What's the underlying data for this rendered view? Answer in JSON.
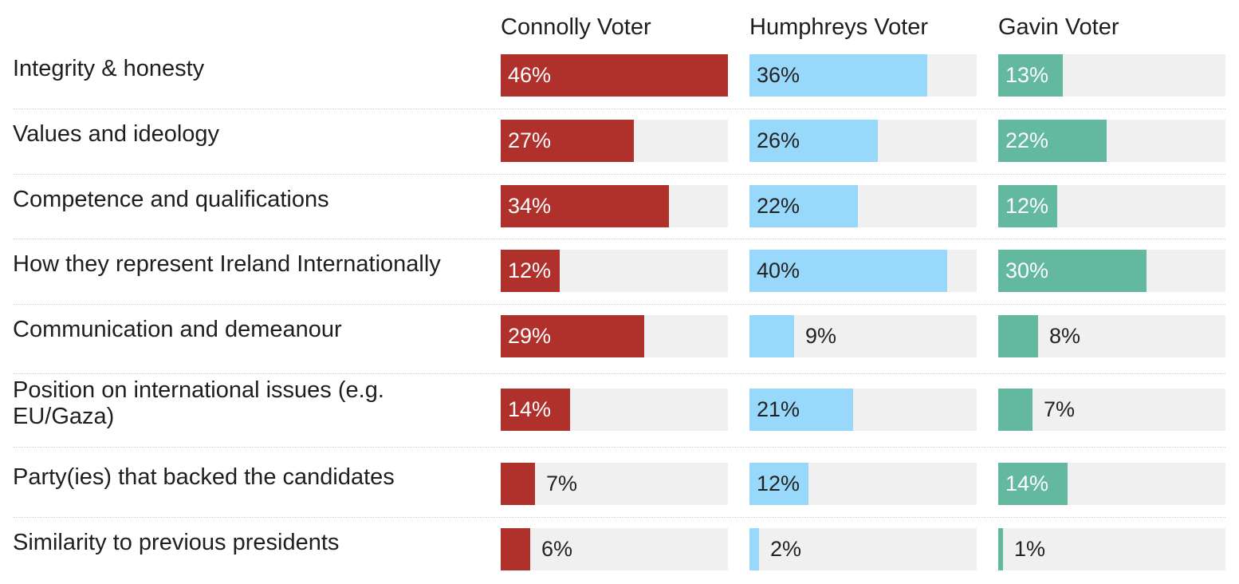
{
  "chart_data": {
    "type": "bar",
    "orientation": "horizontal",
    "layout": "small-multiples",
    "categories": [
      "Integrity & honesty",
      "Values and ideology",
      "Competence and qualifications",
      "How they represent Ireland Internationally",
      "Communication and demeanour",
      "Position on international issues (e.g. EU/Gaza)",
      "Party(ies) that backed the candidates",
      "Similarity to previous presidents"
    ],
    "xlim": [
      0,
      46
    ],
    "series": [
      {
        "name": "Connolly Voter",
        "color": "#b0302b",
        "values": [
          46,
          27,
          34,
          12,
          29,
          14,
          7,
          6
        ]
      },
      {
        "name": "Humphreys Voter",
        "color": "#97d8fb",
        "values": [
          36,
          26,
          22,
          40,
          9,
          21,
          12,
          2
        ]
      },
      {
        "name": "Gavin Voter",
        "color": "#63b8a0",
        "values": [
          13,
          22,
          12,
          30,
          8,
          7,
          14,
          1
        ]
      }
    ],
    "value_format": "{v}%",
    "title": "",
    "xlabel": "",
    "ylabel": ""
  }
}
